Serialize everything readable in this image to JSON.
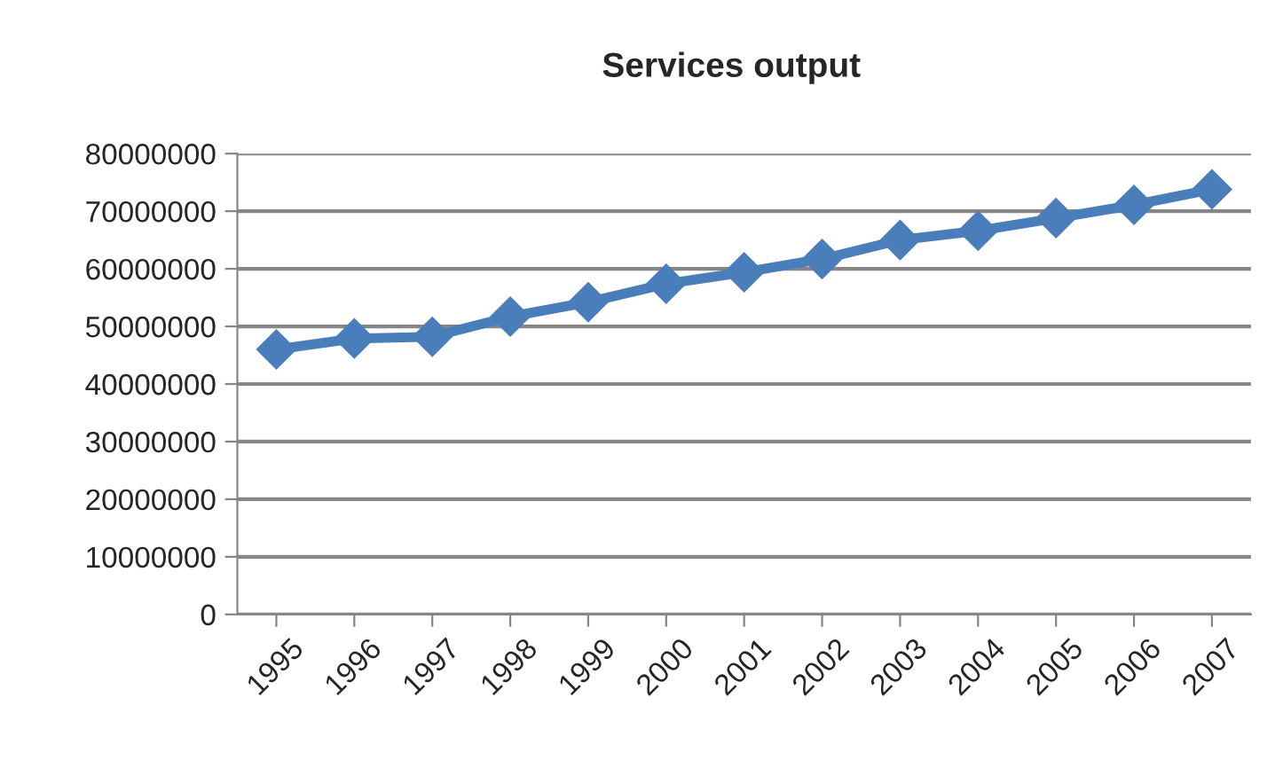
{
  "chart_data": {
    "type": "line",
    "title": "Services output",
    "categories": [
      "1995",
      "1996",
      "1997",
      "1998",
      "1999",
      "2000",
      "2001",
      "2002",
      "2003",
      "2004",
      "2005",
      "2006",
      "2007"
    ],
    "series": [
      {
        "color": "#4a7ebb",
        "values": [
          46000000,
          47900000,
          48200000,
          51700000,
          54200000,
          57400000,
          59400000,
          61700000,
          65000000,
          66600000,
          68800000,
          71100000,
          73800000
        ]
      }
    ],
    "ylim": [
      0,
      80000000
    ],
    "yticks": [
      0,
      10000000,
      20000000,
      30000000,
      40000000,
      50000000,
      60000000,
      70000000,
      80000000
    ],
    "grid": "y",
    "marker": "diamond",
    "line_style": "solid"
  }
}
